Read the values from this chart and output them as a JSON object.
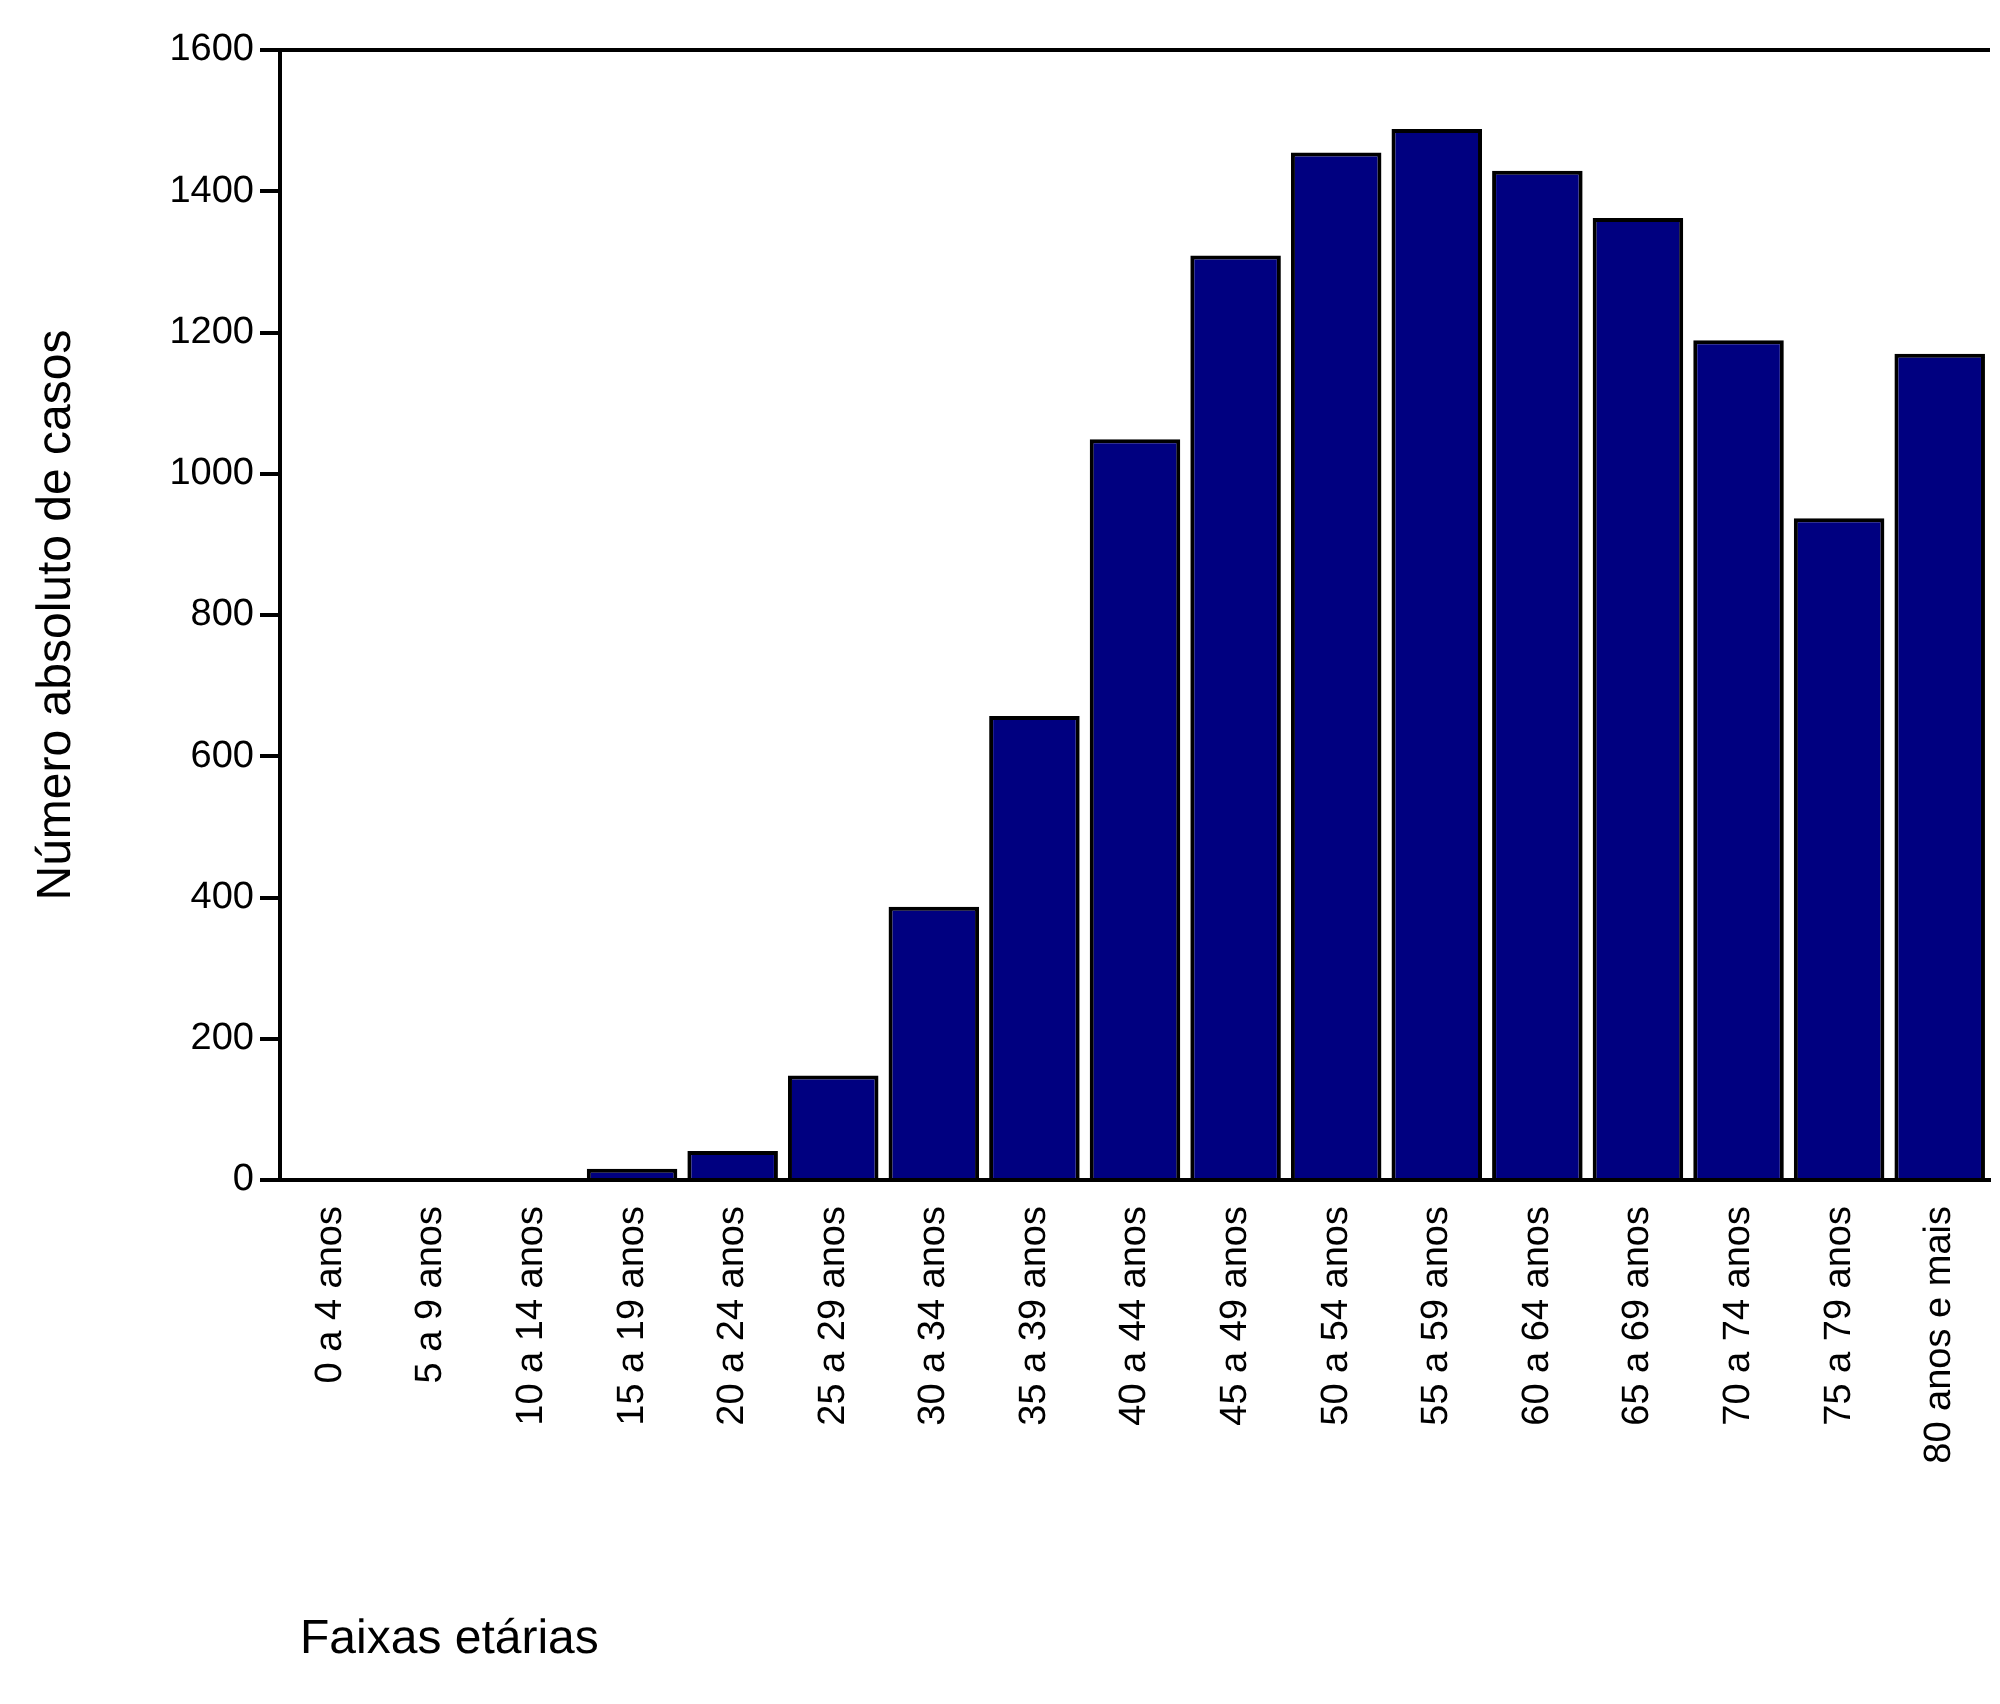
{
  "chart_data": {
    "type": "bar",
    "xlabel": "Faixas etárias",
    "ylabel": "Número absoluto de casos",
    "categories": [
      "0 a 4 anos",
      "5 a 9 anos",
      "10 a 14 anos",
      "15 a 19 anos",
      "20 a 24 anos",
      "25 a 29 anos",
      "30 a 34 anos",
      "35 a 39 anos",
      "40 a 44 anos",
      "45 a 49 anos",
      "50 a 54 anos",
      "55 a 59 anos",
      "60 a 64 anos",
      "65 a 69 anos",
      "70 a 74 anos",
      "75 a 79 anos",
      "80 anos e mais"
    ],
    "values": [
      0,
      0,
      0,
      16,
      41,
      148,
      387,
      657,
      1049,
      1309,
      1455,
      1488,
      1429,
      1362,
      1189,
      937,
      1170
    ],
    "color": "#000080",
    "ylim": [
      0,
      1600
    ],
    "yticks": [
      0,
      200,
      400,
      600,
      800,
      1000,
      1200,
      1400,
      1600
    ],
    "grid": false,
    "legend": false
  }
}
